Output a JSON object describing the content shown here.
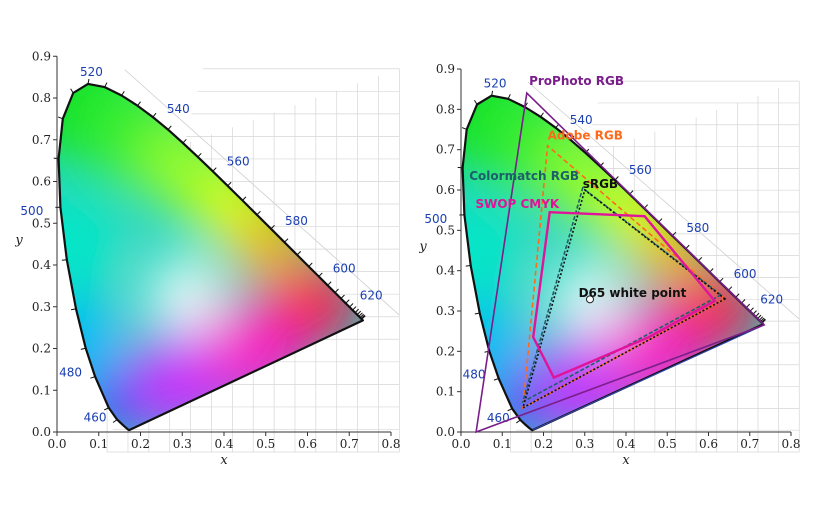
{
  "colors": {
    "prophoto": "#7a1f8a",
    "adobe": "#ff6a1a",
    "colormatch": "#1d5f6a",
    "srgb": "#111111",
    "swop": "#e0149a",
    "wavelength": "#1a3fb3",
    "purple_line": "#3344aa"
  },
  "diagrams": [
    {
      "id": "plain",
      "x_ticks": [
        "0.0",
        "0.1",
        "0.2",
        "0.3",
        "0.4",
        "0.5",
        "0.6",
        "0.7",
        "0.8"
      ],
      "y_ticks": [
        "0.0",
        "0.1",
        "0.2",
        "0.3",
        "0.4",
        "0.5",
        "0.6",
        "0.7",
        "0.8",
        "0.9"
      ],
      "xlabel": "x",
      "ylabel": "y",
      "wavelengths": [
        {
          "label": "460",
          "x": 0.1355,
          "y": 0.0399
        },
        {
          "label": "480",
          "x": 0.0913,
          "y": 0.1327
        },
        {
          "label": "500",
          "x": 0.0082,
          "y": 0.5384
        },
        {
          "label": "520",
          "x": 0.0743,
          "y": 0.8338
        },
        {
          "label": "540",
          "x": 0.2296,
          "y": 0.7543
        },
        {
          "label": "560",
          "x": 0.3731,
          "y": 0.6245
        },
        {
          "label": "580",
          "x": 0.5125,
          "y": 0.4866
        },
        {
          "label": "600",
          "x": 0.627,
          "y": 0.3725
        },
        {
          "label": "620",
          "x": 0.6915,
          "y": 0.3083
        }
      ]
    },
    {
      "id": "gamuts",
      "x_ticks": [
        "0.0",
        "0.1",
        "0.2",
        "0.3",
        "0.4",
        "0.5",
        "0.6",
        "0.7",
        "0.8"
      ],
      "y_ticks": [
        "0.0",
        "0.1",
        "0.2",
        "0.3",
        "0.4",
        "0.5",
        "0.6",
        "0.7",
        "0.8",
        "0.9"
      ],
      "xlabel": "x",
      "ylabel": "y",
      "wavelengths": [
        {
          "label": "460",
          "x": 0.1355,
          "y": 0.0399
        },
        {
          "label": "480",
          "x": 0.0913,
          "y": 0.1327
        },
        {
          "label": "500",
          "x": 0.0082,
          "y": 0.5384
        },
        {
          "label": "520",
          "x": 0.0743,
          "y": 0.8338
        },
        {
          "label": "540",
          "x": 0.2296,
          "y": 0.7543
        },
        {
          "label": "560",
          "x": 0.3731,
          "y": 0.6245
        },
        {
          "label": "580",
          "x": 0.5125,
          "y": 0.4866
        },
        {
          "label": "600",
          "x": 0.627,
          "y": 0.3725
        },
        {
          "label": "620",
          "x": 0.6915,
          "y": 0.3083
        }
      ],
      "gamuts": [
        {
          "label": "ProPhoto RGB",
          "key": "prophoto",
          "dash": "",
          "points": [
            [
              0.7347,
              0.2653
            ],
            [
              0.1596,
              0.8404
            ],
            [
              0.0366,
              0.0001
            ]
          ]
        },
        {
          "label": "Adobe RGB",
          "key": "adobe",
          "dash": "5,3",
          "points": [
            [
              0.64,
              0.33
            ],
            [
              0.21,
              0.71
            ],
            [
              0.15,
              0.06
            ]
          ]
        },
        {
          "label": "Colormatch RGB",
          "key": "colormatch",
          "dash": "4,2",
          "points": [
            [
              0.63,
              0.34
            ],
            [
              0.295,
              0.605
            ],
            [
              0.15,
              0.075
            ]
          ]
        },
        {
          "label": "sRGB",
          "key": "srgb",
          "dash": "2,2",
          "points": [
            [
              0.64,
              0.33
            ],
            [
              0.3,
              0.6
            ],
            [
              0.15,
              0.06
            ]
          ]
        },
        {
          "label": "SWOP CMYK",
          "key": "swop",
          "dash": "",
          "points": [
            [
              0.215,
              0.545
            ],
            [
              0.445,
              0.535
            ],
            [
              0.615,
              0.325
            ],
            [
              0.455,
              0.235
            ],
            [
              0.225,
              0.135
            ],
            [
              0.175,
              0.235
            ]
          ]
        }
      ],
      "white_point": {
        "label": "D65 white point",
        "x": 0.3127,
        "y": 0.329
      }
    }
  ]
}
